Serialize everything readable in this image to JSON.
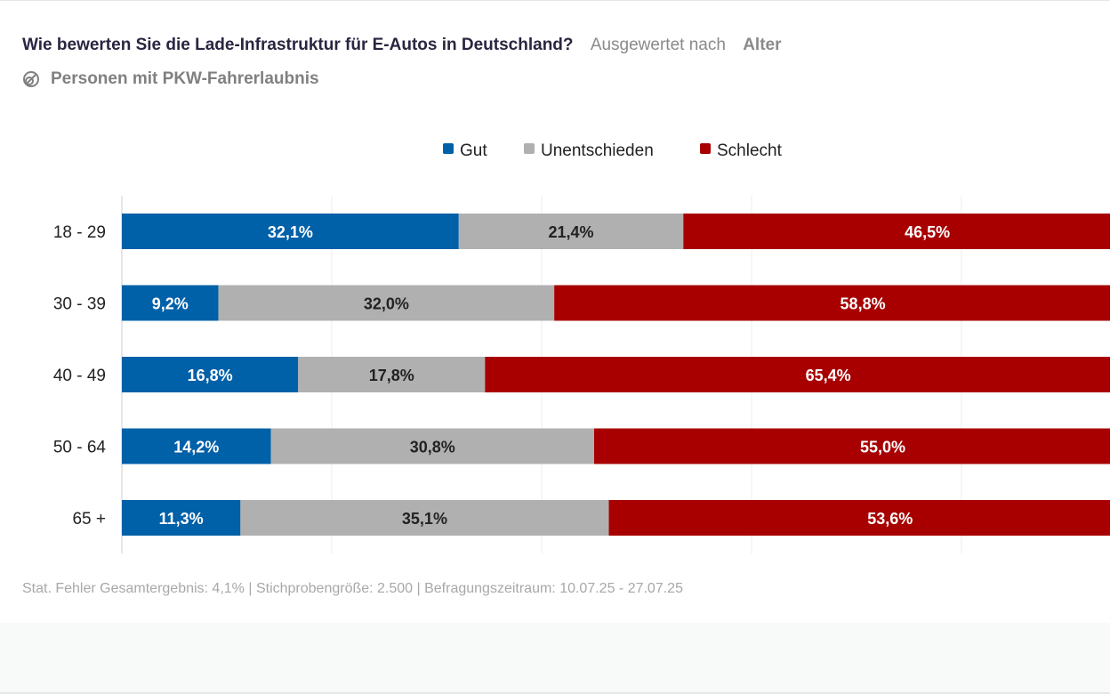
{
  "header": {
    "question": "Wie bewerten Sie die Lade-Infrastruktur für E-Autos in Deutschland?",
    "evaluated_by_label": "Ausgewertet nach",
    "group": "Alter",
    "population": "Personen mit PKW-Fahrerlaubnis",
    "population_icon": "filter-circle-icon"
  },
  "footer": {
    "text": "Stat. Fehler Gesamtergebnis: 4,1% | Stichprobengröße: 2.500 | Befragungszeitraum: 10.07.25 - 27.07.25"
  },
  "chart_data": {
    "type": "bar",
    "orientation": "horizontal",
    "stacked": true,
    "xlim": [
      0,
      100
    ],
    "grid": true,
    "legend_position": "top",
    "categories": [
      "18 - 29",
      "30 - 39",
      "40 - 49",
      "50 - 64",
      "65 +"
    ],
    "series": [
      {
        "name": "Gut",
        "color": "#0060a8",
        "label_color": "#ffffff",
        "values": [
          32.1,
          9.2,
          16.8,
          14.2,
          11.3
        ]
      },
      {
        "name": "Unentschieden",
        "color": "#b0b0b0",
        "label_color": "#222222",
        "values": [
          21.4,
          32.0,
          17.8,
          30.8,
          35.1
        ]
      },
      {
        "name": "Schlecht",
        "color": "#a80000",
        "label_color": "#ffffff",
        "values": [
          46.5,
          58.8,
          65.4,
          55.0,
          53.6
        ]
      }
    ]
  }
}
